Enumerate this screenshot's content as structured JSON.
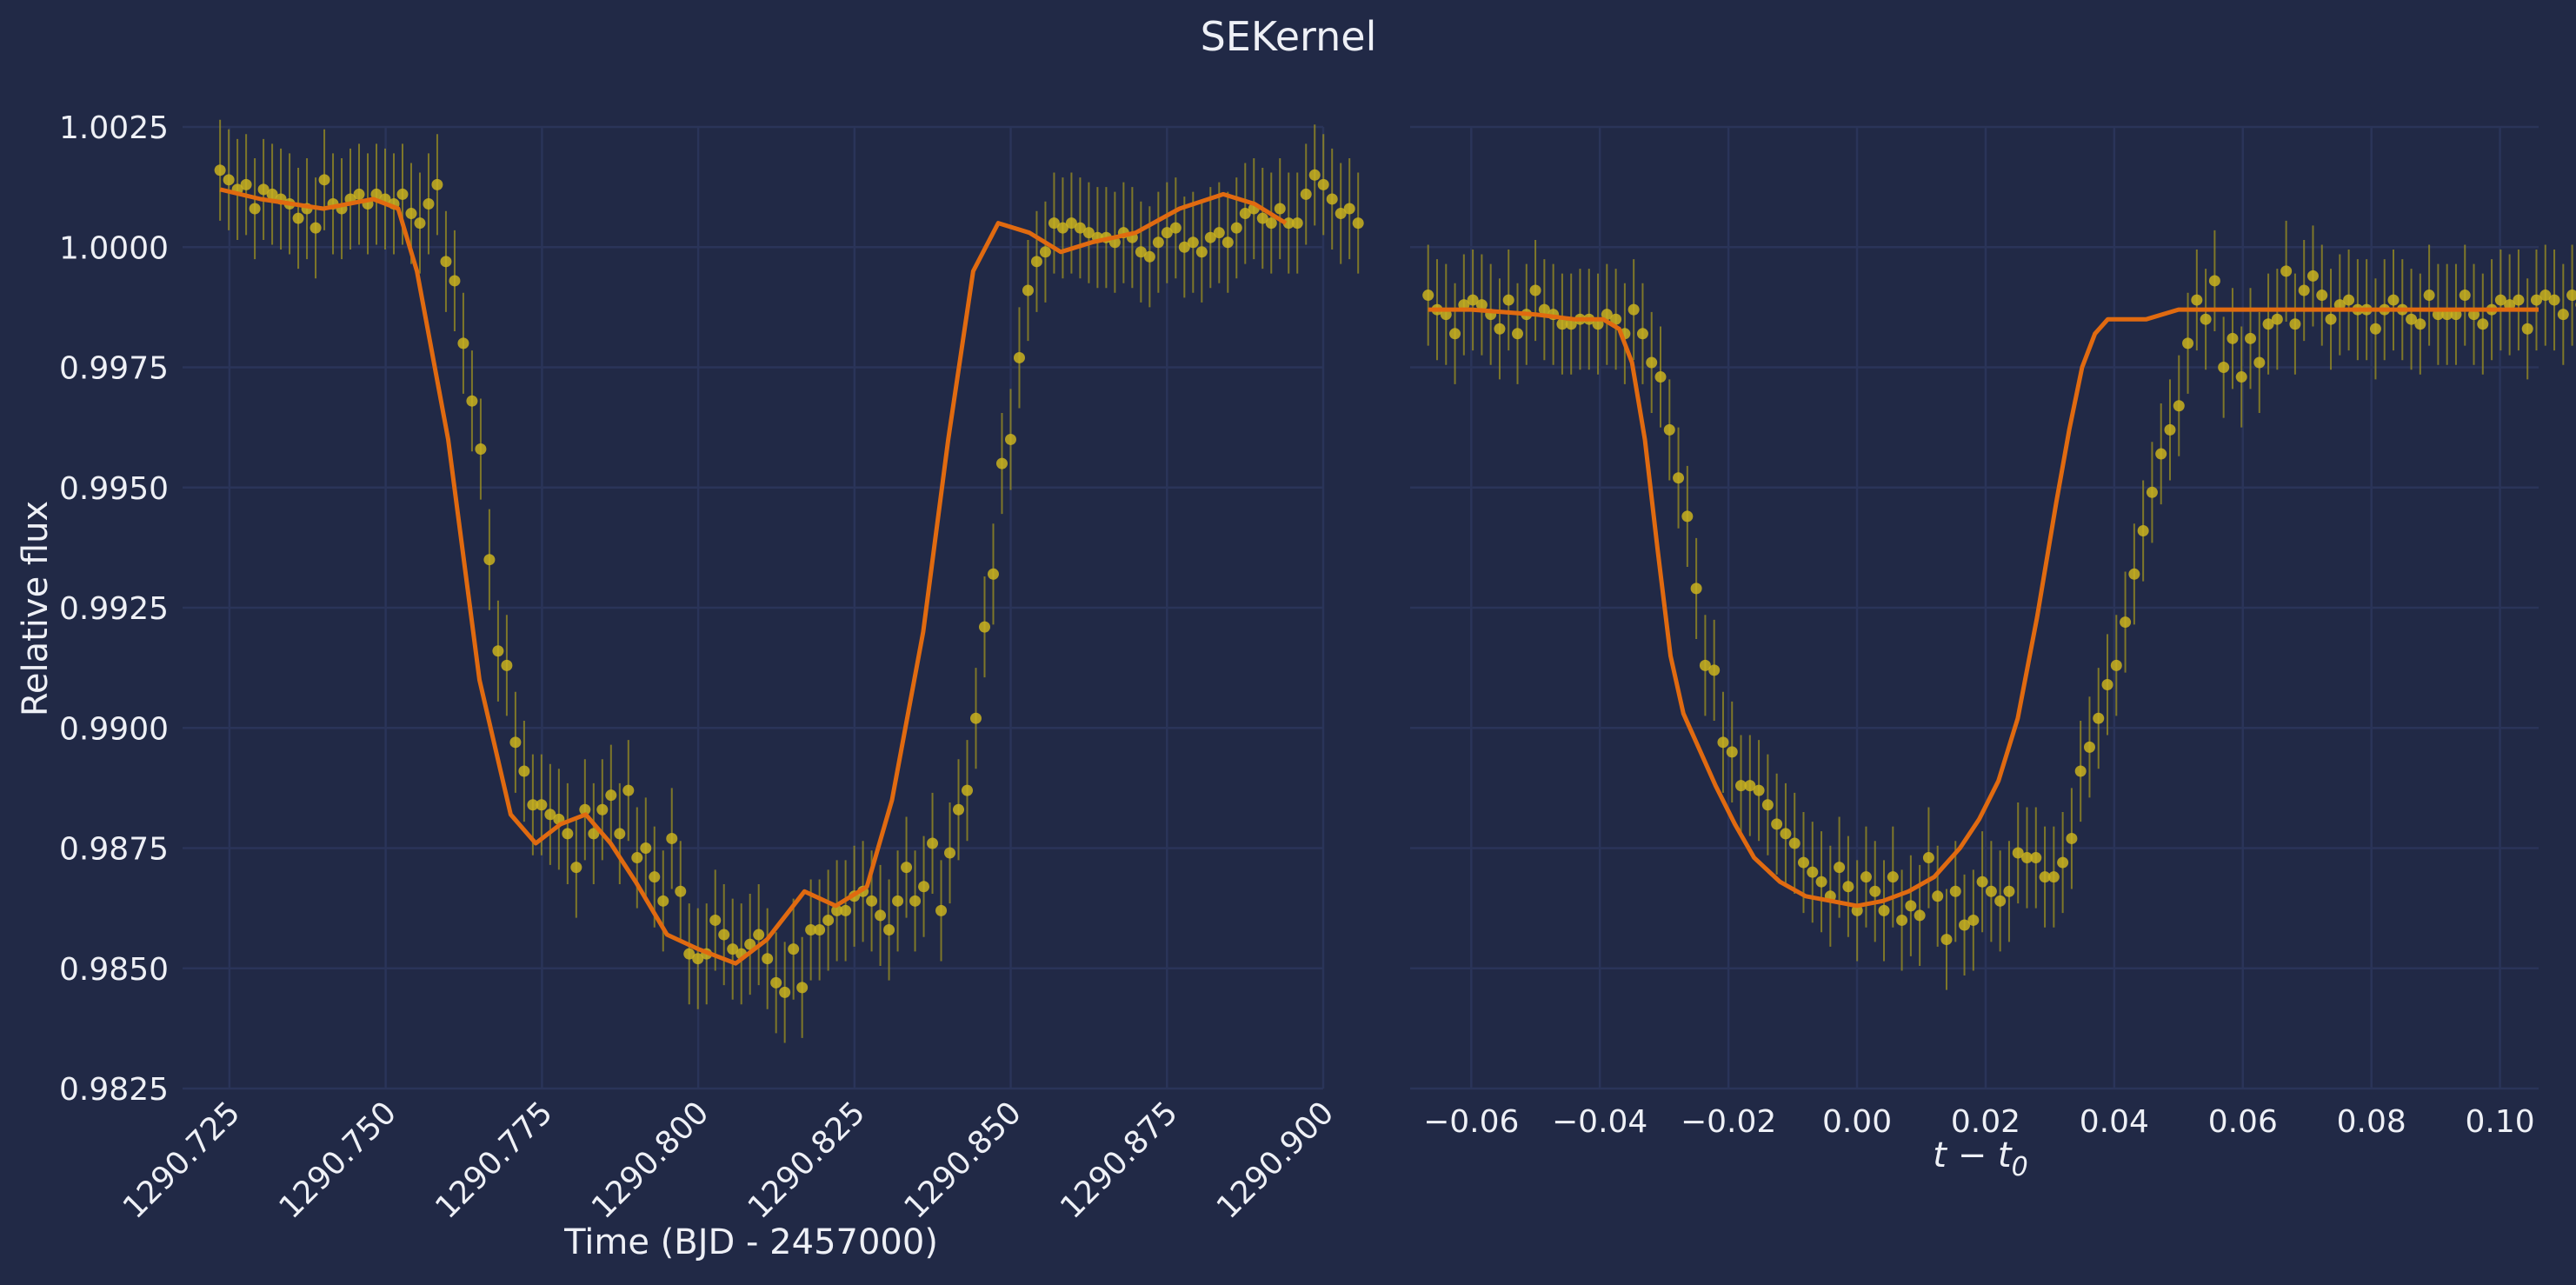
{
  "figure": {
    "title": "SEKernel",
    "background": "#212946"
  },
  "colors": {
    "points": "#c9b21e",
    "errorbars": "#9e9220",
    "model": "#e06a10",
    "grid": "#2a3459",
    "text": "#eef0f6"
  },
  "chart_data": [
    {
      "type": "scatter",
      "xlabel": "Time (BJD - 2457000)",
      "ylabel": "Relative flux",
      "xlim": [
        1290.7175,
        1290.9
      ],
      "ylim": [
        0.9825,
        1.0025
      ],
      "xticks": [
        "1290.725",
        "1290.750",
        "1290.775",
        "1290.800",
        "1290.825",
        "1290.850",
        "1290.875",
        "1290.900"
      ],
      "yticks": [
        "0.9825",
        "0.9850",
        "0.9875",
        "0.9900",
        "0.9925",
        "0.9950",
        "0.9975",
        "1.0000",
        "1.0025"
      ],
      "x_start": 1290.7235,
      "x_step": 0.00139,
      "yerr": 0.00105,
      "y": [
        1.0016,
        1.0014,
        1.0012,
        1.0013,
        1.0008,
        1.0012,
        1.0011,
        1.001,
        1.0009,
        1.0006,
        1.0008,
        1.0004,
        1.0014,
        1.0009,
        1.0008,
        1.001,
        1.0011,
        1.0009,
        1.0011,
        1.001,
        1.0009,
        1.0011,
        1.0007,
        1.0005,
        1.0009,
        1.0013,
        0.9997,
        0.9993,
        0.998,
        0.9968,
        0.9958,
        0.9935,
        0.9916,
        0.9913,
        0.9897,
        0.9891,
        0.9884,
        0.9884,
        0.9882,
        0.9881,
        0.9878,
        0.9871,
        0.9883,
        0.9878,
        0.9883,
        0.9886,
        0.9878,
        0.9887,
        0.9873,
        0.9875,
        0.9869,
        0.9864,
        0.9877,
        0.9866,
        0.9853,
        0.9852,
        0.9853,
        0.986,
        0.9857,
        0.9854,
        0.9853,
        0.9855,
        0.9857,
        0.9852,
        0.9847,
        0.9845,
        0.9854,
        0.9846,
        0.9858,
        0.9858,
        0.986,
        0.9862,
        0.9862,
        0.9865,
        0.9866,
        0.9864,
        0.9861,
        0.9858,
        0.9864,
        0.9871,
        0.9864,
        0.9867,
        0.9876,
        0.9862,
        0.9874,
        0.9883,
        0.9887,
        0.9902,
        0.9921,
        0.9932,
        0.9955,
        0.996,
        0.9977,
        0.9991,
        0.9997,
        0.9999,
        1.0005,
        1.0004,
        1.0005,
        1.0004,
        1.0003,
        1.0002,
        1.0002,
        1.0001,
        1.0003,
        1.0002,
        0.9999,
        0.9998,
        1.0001,
        1.0003,
        1.0004,
        1.0,
        1.0001,
        0.9999,
        1.0002,
        1.0003,
        1.0001,
        1.0004,
        1.0007,
        1.0008,
        1.0006,
        1.0005,
        1.0008,
        1.0005,
        1.0005,
        1.0011,
        1.0015,
        1.0013,
        1.001,
        1.0007,
        1.0008,
        1.0005
      ],
      "model": [
        [
          1290.7235,
          1.0012
        ],
        [
          1290.73,
          1.001
        ],
        [
          1290.74,
          1.0008
        ],
        [
          1290.748,
          1.001
        ],
        [
          1290.752,
          1.0008
        ],
        [
          1290.755,
          0.9995
        ],
        [
          1290.76,
          0.996
        ],
        [
          1290.765,
          0.991
        ],
        [
          1290.77,
          0.9882
        ],
        [
          1290.774,
          0.9876
        ],
        [
          1290.778,
          0.988
        ],
        [
          1290.782,
          0.9882
        ],
        [
          1290.786,
          0.9876
        ],
        [
          1290.79,
          0.9868
        ],
        [
          1290.795,
          0.9857
        ],
        [
          1290.8,
          0.9854
        ],
        [
          1290.806,
          0.9851
        ],
        [
          1290.811,
          0.9856
        ],
        [
          1290.817,
          0.9866
        ],
        [
          1290.822,
          0.9863
        ],
        [
          1290.827,
          0.9867
        ],
        [
          1290.831,
          0.9885
        ],
        [
          1290.836,
          0.992
        ],
        [
          1290.84,
          0.996
        ],
        [
          1290.844,
          0.9995
        ],
        [
          1290.848,
          1.0005
        ],
        [
          1290.853,
          1.0003
        ],
        [
          1290.858,
          0.9999
        ],
        [
          1290.863,
          1.0001
        ],
        [
          1290.87,
          1.0003
        ],
        [
          1290.877,
          1.0008
        ],
        [
          1290.884,
          1.0011
        ],
        [
          1290.889,
          1.0009
        ],
        [
          1290.894,
          1.0005
        ]
      ]
    },
    {
      "type": "scatter",
      "xlabel_main": "t − t",
      "xlabel_sub": "0",
      "xlim": [
        -0.0695,
        0.106
      ],
      "ylim": [
        0.9825,
        1.0025
      ],
      "xticks": [
        "−0.06",
        "−0.04",
        "−0.02",
        "0.00",
        "0.02",
        "0.04",
        "0.06",
        "0.08",
        "0.10"
      ],
      "x_start": -0.0667,
      "x_step": 0.00139,
      "yerr": 0.00105,
      "y": [
        0.999,
        0.9987,
        0.9986,
        0.9982,
        0.9988,
        0.9989,
        0.9988,
        0.9986,
        0.9983,
        0.9989,
        0.9982,
        0.9986,
        0.9991,
        0.9987,
        0.9986,
        0.9984,
        0.9984,
        0.9985,
        0.9985,
        0.9984,
        0.9986,
        0.9985,
        0.9982,
        0.9987,
        0.9982,
        0.9976,
        0.9973,
        0.9962,
        0.9952,
        0.9944,
        0.9929,
        0.9913,
        0.9912,
        0.9897,
        0.9895,
        0.9888,
        0.9888,
        0.9887,
        0.9884,
        0.988,
        0.9878,
        0.9876,
        0.9872,
        0.987,
        0.9868,
        0.9865,
        0.9871,
        0.9867,
        0.9862,
        0.9869,
        0.9866,
        0.9862,
        0.9869,
        0.986,
        0.9863,
        0.9861,
        0.9873,
        0.9865,
        0.9856,
        0.9866,
        0.9859,
        0.986,
        0.9868,
        0.9866,
        0.9864,
        0.9866,
        0.9874,
        0.9873,
        0.9873,
        0.9869,
        0.9869,
        0.9872,
        0.9877,
        0.9891,
        0.9896,
        0.9902,
        0.9909,
        0.9913,
        0.9922,
        0.9932,
        0.9941,
        0.9949,
        0.9957,
        0.9962,
        0.9967,
        0.998,
        0.9989,
        0.9985,
        0.9993,
        0.9975,
        0.9981,
        0.9973,
        0.9981,
        0.9976,
        0.9984,
        0.9985,
        0.9995,
        0.9984,
        0.9991,
        0.9994,
        0.999,
        0.9985,
        0.9988,
        0.9989,
        0.9987,
        0.9987,
        0.9983,
        0.9987,
        0.9989,
        0.9987,
        0.9985,
        0.9984,
        0.999,
        0.9986,
        0.9986,
        0.9986,
        0.999,
        0.9986,
        0.9984,
        0.9987,
        0.9989,
        0.9988,
        0.9989,
        0.9983,
        0.9989,
        0.999,
        0.9989,
        0.9986,
        0.999,
        0.9988,
        0.9986,
        0.9986,
        0.9988,
        0.9987,
        0.9982,
        0.9986,
        0.9985,
        0.9988,
        0.9985,
        0.9986,
        0.9987,
        0.9986,
        0.9992,
        0.9987,
        0.9986,
        0.9987,
        0.9987,
        0.9987
      ],
      "model": [
        [
          -0.0667,
          0.9987
        ],
        [
          -0.06,
          0.9987
        ],
        [
          -0.05,
          0.9986
        ],
        [
          -0.044,
          0.9985
        ],
        [
          -0.0395,
          0.9985
        ],
        [
          -0.037,
          0.9983
        ],
        [
          -0.035,
          0.9976
        ],
        [
          -0.033,
          0.996
        ],
        [
          -0.031,
          0.9937
        ],
        [
          -0.029,
          0.9915
        ],
        [
          -0.027,
          0.9903
        ],
        [
          -0.025,
          0.9897
        ],
        [
          -0.022,
          0.9888
        ],
        [
          -0.019,
          0.988
        ],
        [
          -0.016,
          0.9873
        ],
        [
          -0.012,
          0.9868
        ],
        [
          -0.008,
          0.9865
        ],
        [
          -0.004,
          0.9864
        ],
        [
          0.0,
          0.9863
        ],
        [
          0.004,
          0.9864
        ],
        [
          0.008,
          0.9866
        ],
        [
          0.012,
          0.9869
        ],
        [
          0.016,
          0.9875
        ],
        [
          0.019,
          0.9881
        ],
        [
          0.022,
          0.9889
        ],
        [
          0.025,
          0.9902
        ],
        [
          0.028,
          0.9923
        ],
        [
          0.031,
          0.9947
        ],
        [
          0.033,
          0.9962
        ],
        [
          0.035,
          0.9975
        ],
        [
          0.037,
          0.9982
        ],
        [
          0.039,
          0.9985
        ],
        [
          0.045,
          0.9985
        ],
        [
          0.05,
          0.9987
        ],
        [
          0.06,
          0.9987
        ],
        [
          0.08,
          0.9987
        ],
        [
          0.1,
          0.9987
        ],
        [
          0.106,
          0.9987
        ]
      ]
    }
  ]
}
